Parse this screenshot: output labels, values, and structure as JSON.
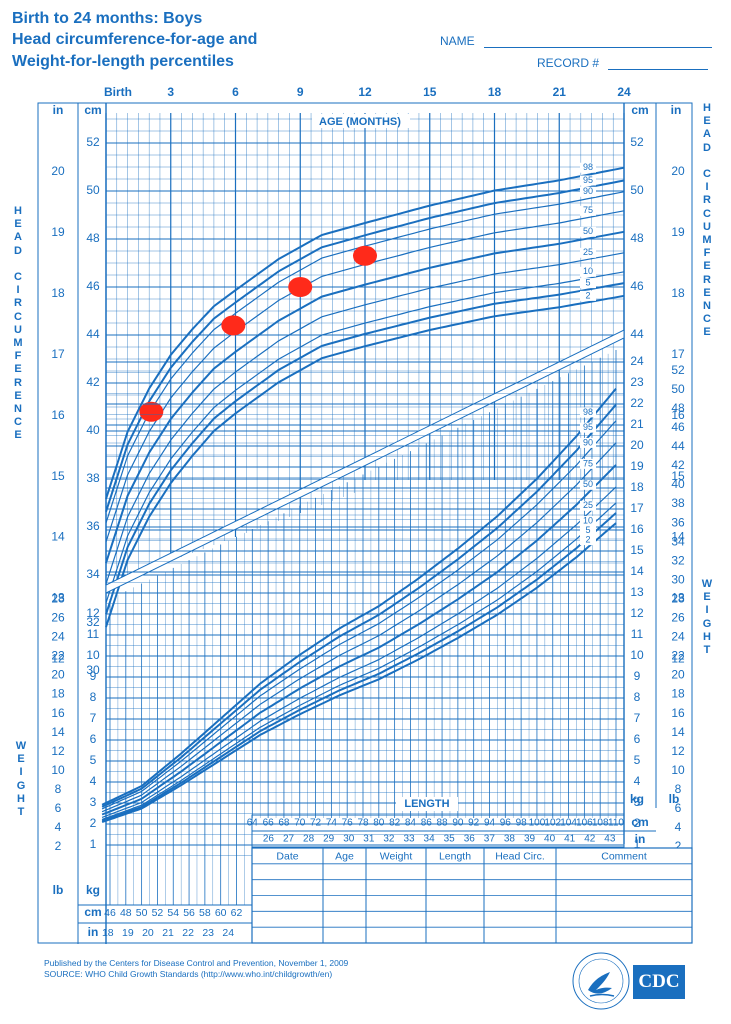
{
  "header": {
    "title_line1": "Birth to 24 months: Boys",
    "title_line2": "Head circumference-for-age and",
    "title_line3": "Weight-for-length percentiles",
    "name_label": "NAME",
    "record_label": "RECORD #"
  },
  "side_labels": {
    "head_circumference": "HEAD CIRCUMFERENCE",
    "weight": "WEIGHT"
  },
  "colors": {
    "ink": "#1a6fbf",
    "measurement_dots": "#ff2a1a"
  },
  "table": {
    "headers": [
      "Date",
      "Age",
      "Weight",
      "Length",
      "Head Circ.",
      "Comment"
    ],
    "rows": 5
  },
  "footer": {
    "line1": "Published by the Centers for Disease Control and Prevention, November 1, 2009",
    "line2": "SOURCE:  WHO Child Growth Standards (http://www.who.int/childgrowth/en)",
    "logo_text": "CDC"
  },
  "chart_data": [
    {
      "type": "line",
      "title": "AGE (MONTHS)",
      "xlabel": "AGE (MONTHS)",
      "ylabel": "HEAD CIRCUMFERENCE",
      "x_ticks": [
        "Birth",
        "3",
        "6",
        "9",
        "12",
        "15",
        "18",
        "21",
        "24"
      ],
      "xlim": [
        0,
        24
      ],
      "ylim": [
        29.5,
        54
      ],
      "y_ticks_cm": [
        30,
        32,
        34,
        36,
        38,
        40,
        42,
        44,
        46,
        48,
        50,
        52
      ],
      "y_ticks_in": [
        12,
        13,
        14,
        15,
        16,
        17,
        18,
        19,
        20
      ],
      "unit_labels": [
        "in",
        "cm"
      ],
      "percentile_labels": [
        "98",
        "95",
        "90",
        "75",
        "50",
        "25",
        "10",
        "5",
        "2"
      ],
      "median_curve_cm": {
        "x": [
          0,
          1,
          2,
          3,
          4,
          5,
          6,
          8,
          10,
          12,
          15,
          18,
          21,
          24
        ],
        "y": [
          34.5,
          37.3,
          39.1,
          40.5,
          41.6,
          42.6,
          43.3,
          44.6,
          45.6,
          46.1,
          46.8,
          47.4,
          47.8,
          48.3
        ]
      },
      "percentile_z": [
        2.054,
        1.645,
        1.282,
        0.674,
        0,
        -0.674,
        -1.282,
        -1.645,
        -2.054
      ],
      "percentile_sd_cm": {
        "x": [
          0,
          3,
          6,
          12,
          24
        ],
        "y": [
          1.3,
          1.3,
          1.25,
          1.25,
          1.3
        ]
      },
      "measurements": [
        {
          "age_months": 2.1,
          "head_cm": 40.8
        },
        {
          "age_months": 5.9,
          "head_cm": 44.4
        },
        {
          "age_months": 9,
          "head_cm": 46.0
        },
        {
          "age_months": 12,
          "head_cm": 47.3
        }
      ]
    },
    {
      "type": "line",
      "title": "LENGTH",
      "xlabel": "LENGTH",
      "ylabel": "WEIGHT",
      "x_ticks_cm": [
        46,
        48,
        50,
        52,
        54,
        56,
        58,
        60,
        62,
        64,
        66,
        68,
        70,
        72,
        74,
        76,
        78,
        80,
        82,
        84,
        86,
        88,
        90,
        92,
        94,
        96,
        98,
        100,
        102,
        104,
        106,
        108,
        110
      ],
      "x_ticks_in": [
        18,
        19,
        20,
        21,
        22,
        23,
        24,
        26,
        27,
        28,
        29,
        30,
        31,
        32,
        33,
        34,
        35,
        36,
        37,
        38,
        39,
        40,
        41,
        42,
        43
      ],
      "xlim": [
        45,
        110
      ],
      "ylim": [
        0.6,
        24
      ],
      "y_ticks_kg": [
        1,
        2,
        3,
        4,
        5,
        6,
        7,
        8,
        9,
        10,
        11,
        12,
        13,
        14,
        15,
        16,
        17,
        18,
        19,
        20,
        21,
        22,
        23,
        24
      ],
      "y_ticks_lb": [
        2,
        4,
        6,
        8,
        10,
        12,
        14,
        16,
        18,
        20,
        22,
        24,
        26,
        28,
        30,
        32,
        34,
        36,
        38,
        40,
        42,
        44,
        46,
        48,
        50,
        52
      ],
      "unit_labels": [
        "cm",
        "in",
        "kg",
        "lb"
      ],
      "percentile_labels": [
        "98",
        "95",
        "90",
        "75",
        "50",
        "25",
        "10",
        "5",
        "2"
      ],
      "median_curve_kg": {
        "x": [
          45,
          50,
          55,
          60,
          65,
          70,
          75,
          80,
          85,
          90,
          95,
          100,
          105,
          110
        ],
        "y": [
          2.45,
          3.2,
          4.5,
          5.9,
          7.3,
          8.45,
          9.5,
          10.4,
          11.5,
          12.7,
          14.0,
          15.5,
          17.2,
          19.1
        ]
      },
      "percentile_factor": [
        1.19,
        1.15,
        1.11,
        1.055,
        1.0,
        0.945,
        0.905,
        0.88,
        0.855
      ]
    }
  ]
}
